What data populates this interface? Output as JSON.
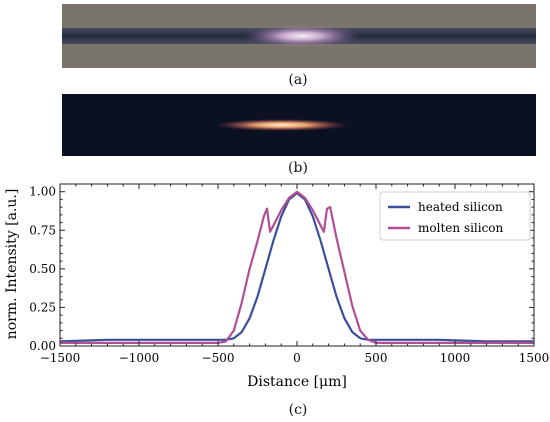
{
  "captions": {
    "a": "(a)",
    "b": "(b)",
    "c": "(c)"
  },
  "colors": {
    "heated": "#3a4f9a",
    "molten": "#b14e96",
    "photo_a_bg": "#7a756c",
    "photo_a_band": "#2b3247",
    "photo_a_glow": "#f2c9ee",
    "photo_b_bg": "#0c1122",
    "photo_b_glow": "#ffcf9a"
  },
  "chart_data": {
    "type": "line",
    "title": "",
    "xlabel": "Distance [μm]",
    "ylabel": "norm. Intensity [a.u.]",
    "xlim": [
      -1500,
      1500
    ],
    "ylim": [
      0,
      1.05
    ],
    "xticks": [
      -1500,
      -1000,
      -500,
      0,
      500,
      1000,
      1500
    ],
    "xtick_labels": [
      "−1500",
      "−1000",
      "−500",
      "0",
      "500",
      "1000",
      "1500"
    ],
    "yticks": [
      0.0,
      0.25,
      0.5,
      0.75,
      1.0
    ],
    "ytick_labels": [
      "0.00",
      "0.25",
      "0.50",
      "0.75",
      "1.00"
    ],
    "grid": false,
    "legend": "top-right",
    "series": [
      {
        "name": "heated silicon",
        "x": [
          -1500,
          -1200,
          -900,
          -600,
          -500,
          -450,
          -400,
          -350,
          -300,
          -250,
          -200,
          -150,
          -100,
          -50,
          0,
          50,
          100,
          150,
          200,
          250,
          300,
          350,
          400,
          450,
          500,
          600,
          900,
          1200,
          1500
        ],
        "y": [
          0.03,
          0.04,
          0.04,
          0.04,
          0.04,
          0.04,
          0.05,
          0.09,
          0.18,
          0.32,
          0.5,
          0.68,
          0.84,
          0.95,
          0.99,
          0.95,
          0.84,
          0.68,
          0.5,
          0.32,
          0.18,
          0.09,
          0.05,
          0.04,
          0.04,
          0.04,
          0.04,
          0.03,
          0.03
        ]
      },
      {
        "name": "molten silicon",
        "x": [
          -1500,
          -1000,
          -600,
          -500,
          -450,
          -400,
          -350,
          -300,
          -250,
          -210,
          -190,
          -170,
          -150,
          -100,
          -50,
          0,
          50,
          100,
          150,
          170,
          190,
          210,
          250,
          300,
          350,
          400,
          450,
          500,
          600,
          1000,
          1500
        ],
        "y": [
          0.02,
          0.02,
          0.02,
          0.02,
          0.03,
          0.1,
          0.28,
          0.5,
          0.68,
          0.84,
          0.89,
          0.74,
          0.78,
          0.88,
          0.96,
          1.0,
          0.96,
          0.88,
          0.78,
          0.74,
          0.89,
          0.9,
          0.7,
          0.48,
          0.26,
          0.1,
          0.04,
          0.02,
          0.02,
          0.02,
          0.02
        ]
      }
    ]
  }
}
